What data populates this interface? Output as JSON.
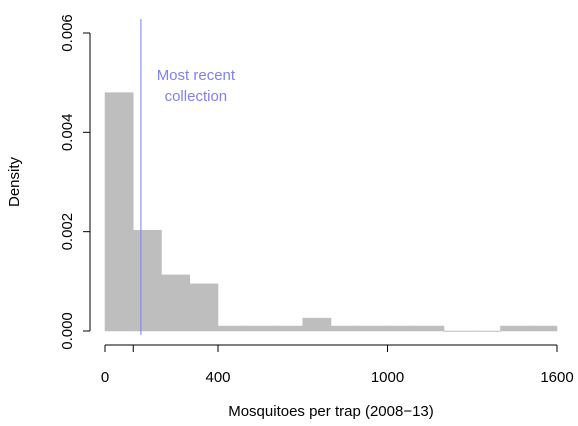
{
  "chart_data": {
    "type": "histogram",
    "xlabel": "Mosquitoes per trap (2008−13)",
    "ylabel": "Density",
    "bins": [
      0,
      100,
      200,
      300,
      400,
      500,
      600,
      700,
      800,
      900,
      1000,
      1100,
      1200,
      1300,
      1400,
      1500,
      1600
    ],
    "values": [
      0.0048,
      0.00203,
      0.00113,
      0.00095,
      0.0001,
      0.0001,
      0.0001,
      0.00026,
      0.0001,
      0.0001,
      0.0001,
      0.0001,
      0,
      0,
      0.0001,
      0.0001
    ],
    "color": "#bebebe",
    "xlim": [
      0,
      1600
    ],
    "xticks": [
      0,
      400,
      1000,
      1600
    ],
    "xminor_ticks": [
      100
    ],
    "ylim": [
      0,
      0.006
    ],
    "yticks": [
      {
        "value": 0,
        "label": "0.000"
      },
      {
        "value": 0.002,
        "label": "0.002"
      },
      {
        "value": 0.004,
        "label": "0.004"
      },
      {
        "value": 0.006,
        "label": "0.006"
      }
    ],
    "vline": {
      "value": 127,
      "color": "#8080f0",
      "label_lines": [
        "Most recent",
        "collection"
      ]
    }
  }
}
